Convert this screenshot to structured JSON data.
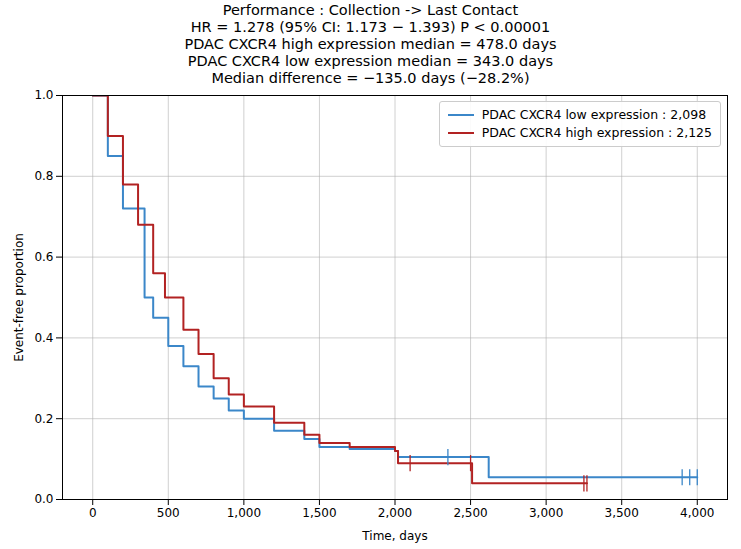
{
  "chart_data": {
    "type": "line",
    "title": "Performance : Collection -> Last Contact",
    "subtitle": [
      "HR = 1.278 (95% CI: 1.173 − 1.393) P < 0.00001",
      "PDAC CXCR4 high expression median = 478.0 days",
      "PDAC CXCR4 low expression median = 343.0 days",
      "Median difference = −135.0 days (−28.2%)"
    ],
    "x_label": "Time, days",
    "y_label": "Event-free proportion",
    "line_style": "step",
    "grid": true,
    "legend": "upper right",
    "xlim": [
      -200,
      4200
    ],
    "ylim": [
      0,
      1
    ],
    "xticks": [
      0,
      500,
      {
        "value": 1000,
        "label": "1,000"
      },
      {
        "value": 1500,
        "label": "1,500"
      },
      {
        "value": 2000,
        "label": "2,000"
      },
      {
        "value": 2500,
        "label": "2,500"
      },
      {
        "value": 3000,
        "label": "3,000"
      },
      {
        "value": 3500,
        "label": "3,500"
      },
      {
        "value": 4000,
        "label": "4,000"
      }
    ],
    "yticks": [
      {
        "value": 0,
        "label": "0.0"
      },
      0.2,
      0.4,
      0.6,
      0.8,
      {
        "value": 1,
        "label": "1.0"
      }
    ],
    "series": [
      {
        "name": "PDAC CXCR4 low expression : 2,098",
        "color": "#3b87c9",
        "x": [
          0,
          100,
          200,
          343,
          400,
          500,
          600,
          700,
          800,
          900,
          1000,
          1200,
          1400,
          1500,
          1700,
          1900,
          2000,
          2020,
          2600,
          2620,
          4000
        ],
        "values": [
          1.0,
          0.85,
          0.72,
          0.5,
          0.45,
          0.38,
          0.33,
          0.28,
          0.25,
          0.22,
          0.2,
          0.17,
          0.15,
          0.13,
          0.125,
          0.125,
          0.12,
          0.105,
          0.105,
          0.055,
          0.055
        ],
        "censored": [
          [
            2350,
            0.105
          ],
          [
            3900,
            0.055
          ],
          [
            3950,
            0.055
          ],
          [
            4000,
            0.055
          ]
        ]
      },
      {
        "name": "PDAC CXCR4 high expression : 2,125",
        "color": "#b22222",
        "x": [
          0,
          100,
          200,
          300,
          400,
          478,
          600,
          700,
          800,
          900,
          1000,
          1200,
          1400,
          1500,
          1700,
          1900,
          2000,
          2020,
          2500,
          2510,
          3270
        ],
        "values": [
          1.0,
          0.9,
          0.78,
          0.68,
          0.56,
          0.5,
          0.42,
          0.36,
          0.3,
          0.26,
          0.23,
          0.19,
          0.16,
          0.14,
          0.13,
          0.13,
          0.12,
          0.09,
          0.09,
          0.04,
          0.04
        ],
        "censored": [
          [
            2100,
            0.09
          ],
          [
            2500,
            0.09
          ],
          [
            3250,
            0.04
          ],
          [
            3270,
            0.04
          ]
        ]
      }
    ]
  }
}
